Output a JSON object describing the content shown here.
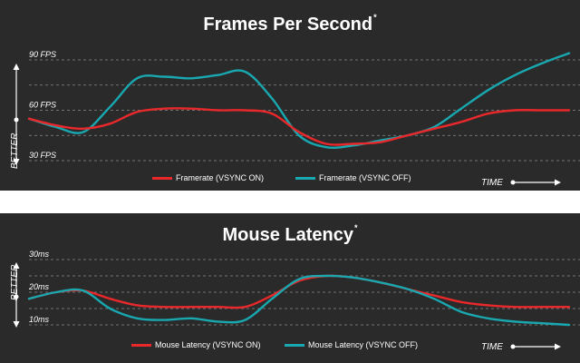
{
  "colors": {
    "background": "#2a2a2a",
    "vsync_on": "#e8282a",
    "vsync_off": "#19a8b0",
    "grid": "#8a8a8a",
    "text": "#ffffff"
  },
  "chart_data": [
    {
      "type": "line",
      "title": "Frames Per Second",
      "title_mark": "*",
      "ylabel": "BETTER",
      "xlabel": "TIME",
      "ylim": [
        15,
        100
      ],
      "yticks": [
        30,
        45,
        60,
        75,
        90
      ],
      "ytick_labels": [
        "30 FPS",
        "",
        "60 FPS",
        "",
        "90 FPS"
      ],
      "grid": true,
      "legend_position": "bottom-center",
      "x": [
        0,
        0.5,
        1,
        1.5,
        2,
        2.5,
        3,
        3.5,
        4,
        4.5,
        5,
        5.5,
        6,
        6.5,
        7,
        7.5,
        8,
        8.5,
        9,
        9.5,
        10
      ],
      "series": [
        {
          "name": "Framerate (VSYNC ON)",
          "color": "#e8282a",
          "values": [
            55,
            51,
            49,
            52,
            59,
            61,
            61,
            60,
            60,
            58,
            47,
            40,
            40,
            41,
            45,
            49,
            53,
            58,
            60,
            60,
            60
          ]
        },
        {
          "name": "Framerate (VSYNC OFF)",
          "color": "#19a8b0",
          "values": [
            55,
            50,
            47,
            62,
            79,
            80,
            79,
            81,
            83,
            67,
            45,
            38,
            39,
            42,
            45,
            50,
            61,
            72,
            81,
            88,
            94
          ]
        }
      ]
    },
    {
      "type": "line",
      "title": "Mouse Latency",
      "title_mark": "*",
      "ylabel": "BETTER",
      "xlabel": "TIME",
      "ylim": [
        5,
        35
      ],
      "yticks": [
        10,
        15,
        20,
        25,
        30
      ],
      "ytick_labels": [
        "10ms",
        "",
        "20ms",
        "",
        "30ms"
      ],
      "grid": true,
      "legend_position": "bottom-center",
      "x": [
        0,
        0.5,
        1,
        1.5,
        2,
        2.5,
        3,
        3.5,
        4,
        4.5,
        5,
        5.5,
        6,
        6.5,
        7,
        7.5,
        8,
        8.5,
        9,
        9.5,
        10
      ],
      "series": [
        {
          "name": "Mouse Latency (VSYNC ON)",
          "color": "#e8282a",
          "values": [
            18,
            20,
            20.5,
            18,
            16,
            15.5,
            15.5,
            15.5,
            15.5,
            19,
            23.5,
            25,
            24.5,
            23,
            21,
            19,
            17,
            16,
            15.5,
            15.5,
            15.5
          ]
        },
        {
          "name": "Mouse Latency (VSYNC OFF)",
          "color": "#19a8b0",
          "values": [
            18,
            20,
            20.5,
            15,
            12,
            11.5,
            12,
            11,
            11.5,
            18,
            24,
            25,
            24.5,
            23,
            21,
            18,
            14,
            12,
            11,
            10.5,
            10
          ]
        }
      ]
    }
  ]
}
